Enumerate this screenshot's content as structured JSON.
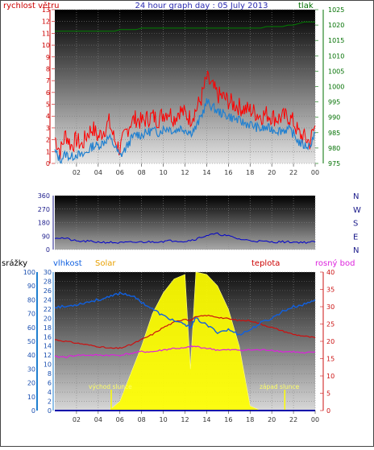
{
  "title": "24 hour graph day : 05 July 2013",
  "colors": {
    "wind": "#ff0000",
    "gust_line": "#2080d0",
    "pressure": "#008000",
    "direction": "#0000cc",
    "humidity": "#1060e0",
    "solar": "#ffff00",
    "temperature": "#cc1010",
    "dewpoint": "#dd22dd",
    "rain": "#0000aa",
    "left_axis_red": "#cc0000",
    "right_axis_green": "#007000",
    "bg_top": "#000000",
    "bg_bottom": "#e0e0e0"
  },
  "x_ticks": [
    "02",
    "04",
    "06",
    "08",
    "10",
    "12",
    "14",
    "16",
    "18",
    "20",
    "22",
    "00"
  ],
  "chart_data": [
    {
      "type": "line",
      "name": "wind-pressure",
      "left_label": "rychlost větru",
      "right_label": "tlak",
      "ylim_left": [
        0,
        13
      ],
      "ylim_right": [
        975,
        1025
      ],
      "left_ticks": [
        0,
        1,
        2,
        3,
        4,
        5,
        6,
        7,
        8,
        9,
        10,
        11,
        12,
        13
      ],
      "right_ticks": [
        975,
        980,
        985,
        990,
        995,
        1000,
        1005,
        1010,
        1015,
        1020,
        1025
      ],
      "hours": [
        0,
        0.5,
        1,
        1.5,
        2,
        2.5,
        3,
        3.5,
        4,
        4.5,
        5,
        5.5,
        6,
        6.5,
        7,
        7.5,
        8,
        8.5,
        9,
        9.5,
        10,
        10.5,
        11,
        11.5,
        12,
        12.5,
        13,
        13.5,
        14,
        14.5,
        15,
        15.5,
        16,
        16.5,
        17,
        17.5,
        18,
        18.5,
        19,
        19.5,
        20,
        20.5,
        21,
        21.5,
        22,
        22.5,
        23,
        23.5,
        24
      ],
      "series": [
        {
          "key": "wind",
          "values": [
            2.2,
            1.0,
            2.5,
            1.5,
            2.0,
            1.5,
            2.5,
            3.0,
            2.2,
            2.8,
            3.5,
            2.0,
            1.2,
            2.5,
            3.5,
            3.8,
            3.5,
            3.8,
            4.0,
            3.7,
            4.2,
            4.4,
            3.8,
            4.5,
            4.2,
            3.8,
            4.5,
            5.5,
            7.2,
            6.5,
            5.8,
            5.6,
            5.3,
            5.0,
            4.8,
            4.6,
            4.5,
            4.3,
            4.0,
            4.2,
            4.0,
            3.8,
            3.9,
            4.0,
            3.5,
            2.5,
            2.2,
            1.8,
            3.2
          ]
        },
        {
          "key": "gust",
          "values": [
            1.0,
            0.3,
            0.8,
            0.5,
            0.8,
            0.6,
            1.0,
            1.5,
            1.5,
            1.8,
            2.2,
            1.5,
            0.6,
            1.2,
            2.0,
            2.5,
            2.4,
            2.6,
            2.8,
            2.6,
            2.9,
            3.0,
            2.7,
            3.0,
            2.9,
            2.6,
            3.0,
            4.0,
            5.2,
            4.8,
            4.4,
            4.2,
            4.0,
            3.8,
            3.6,
            3.4,
            3.3,
            3.1,
            2.9,
            3.0,
            2.9,
            2.8,
            2.8,
            2.9,
            2.5,
            1.8,
            1.5,
            1.5,
            2.6
          ]
        },
        {
          "key": "pressure",
          "values": [
            1018,
            1018,
            1018,
            1018,
            1018,
            1018,
            1018,
            1018,
            1018,
            1018,
            1018,
            1018,
            1018.5,
            1018.5,
            1018.5,
            1018.5,
            1019,
            1019,
            1019,
            1019,
            1019,
            1019,
            1019,
            1019,
            1019,
            1019,
            1019,
            1019,
            1019,
            1019,
            1019,
            1019,
            1019,
            1019,
            1019,
            1019,
            1019,
            1019,
            1019,
            1019.5,
            1019.5,
            1019.5,
            1019.5,
            1020,
            1020,
            1020.5,
            1021,
            1021,
            1021
          ]
        }
      ]
    },
    {
      "type": "line",
      "name": "wind-direction",
      "ylim": [
        0,
        360
      ],
      "left_ticks": [
        0,
        90,
        180,
        270,
        360
      ],
      "compass": [
        "N",
        "W",
        "S",
        "E",
        "N"
      ],
      "hours": [
        0,
        1,
        2,
        3,
        4,
        5,
        6,
        7,
        8,
        9,
        10,
        11,
        12,
        13,
        14,
        15,
        16,
        17,
        18,
        19,
        20,
        21,
        22,
        23,
        24
      ],
      "series": [
        {
          "key": "direction",
          "values": [
            80,
            75,
            55,
            55,
            50,
            48,
            45,
            48,
            50,
            52,
            55,
            60,
            55,
            70,
            95,
            105,
            90,
            70,
            60,
            55,
            50,
            52,
            50,
            48,
            50
          ]
        }
      ]
    },
    {
      "type": "line",
      "name": "weather",
      "labels": {
        "rain": "srážky",
        "humidity": "vlhkost",
        "solar": "Solar",
        "temperature": "teplota",
        "dewpoint": "rosný bod"
      },
      "ylim_rain": [
        0,
        100
      ],
      "ylim_humidity": [
        0,
        30
      ],
      "ylim_temp": [
        0,
        40
      ],
      "rain_ticks": [
        0,
        10,
        20,
        30,
        40,
        50,
        60,
        70,
        80,
        90,
        100
      ],
      "humidity_ticks": [
        0,
        2,
        4,
        6,
        8,
        10,
        12,
        14,
        16,
        18,
        20,
        22,
        24,
        26,
        28,
        30
      ],
      "temp_ticks": [
        0,
        5,
        10,
        15,
        20,
        25,
        30,
        35,
        40
      ],
      "annotations": [
        "východ slunce",
        "západ slunce"
      ],
      "hours": [
        0,
        1,
        2,
        3,
        4,
        5,
        6,
        7,
        8,
        9,
        10,
        11,
        12,
        12.5,
        13,
        14,
        15,
        16,
        17,
        18,
        19,
        20,
        21,
        22,
        23,
        24
      ],
      "series": [
        {
          "key": "humidity",
          "values": [
            22.5,
            22.5,
            23.0,
            23.5,
            24.0,
            24.5,
            25.5,
            25.0,
            23.5,
            22.0,
            20.5,
            19.5,
            18.5,
            18.0,
            20.0,
            18.5,
            17.0,
            17.5,
            16.5,
            17.5,
            19.0,
            20.0,
            21.5,
            22.5,
            23.0,
            24.0
          ]
        },
        {
          "key": "temperature",
          "values": [
            20.5,
            20.0,
            19.5,
            19.0,
            18.5,
            18.0,
            18.0,
            19.0,
            20.5,
            22.0,
            24.0,
            25.5,
            26.5,
            26.0,
            27.0,
            27.5,
            27.0,
            26.5,
            26.0,
            26.0,
            25.0,
            24.0,
            23.0,
            22.0,
            21.5,
            21.0
          ]
        },
        {
          "key": "dewpoint",
          "values": [
            15.5,
            15.5,
            16.0,
            16.0,
            16.0,
            16.0,
            16.0,
            16.5,
            17.0,
            17.0,
            17.5,
            18.0,
            18.0,
            18.5,
            18.5,
            18.0,
            17.5,
            17.5,
            17.5,
            17.5,
            17.5,
            17.5,
            17.0,
            17.0,
            16.5,
            17.0
          ]
        },
        {
          "key": "solar",
          "values": [
            0,
            0,
            0,
            0,
            0,
            0,
            2,
            8,
            14,
            21,
            25.5,
            28.5,
            29.5,
            9,
            30,
            29.5,
            27,
            22,
            14,
            1,
            0,
            0,
            0,
            0,
            0,
            0
          ]
        },
        {
          "key": "rain",
          "values": [
            0,
            0,
            0,
            0,
            0,
            0,
            0,
            0,
            0,
            0,
            0,
            0,
            0,
            0,
            0,
            0,
            0,
            0,
            0,
            0,
            0,
            0,
            0,
            0,
            0,
            0
          ]
        }
      ]
    }
  ]
}
